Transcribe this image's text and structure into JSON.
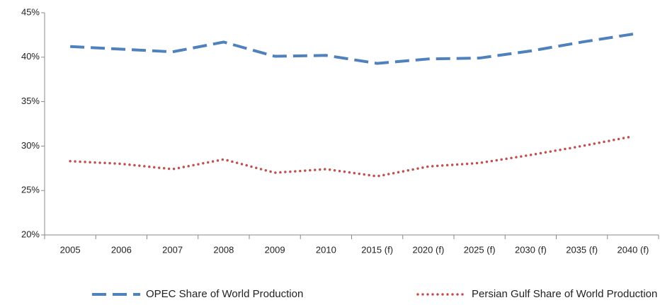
{
  "chart_data": {
    "type": "line",
    "categories": [
      "2005",
      "2006",
      "2007",
      "2008",
      "2009",
      "2010",
      "2015 (f)",
      "2020 (f)",
      "2025 (f)",
      "2030 (f)",
      "2035 (f)",
      "2040 (f)"
    ],
    "series": [
      {
        "name": "OPEC Share of World Production",
        "color": "#4f81bd",
        "style": "dashed",
        "values": [
          41.2,
          40.9,
          40.6,
          41.7,
          40.1,
          40.2,
          39.3,
          39.8,
          39.9,
          40.7,
          41.7,
          42.6
        ]
      },
      {
        "name": "Persian Gulf Share of World Production",
        "color": "#c0504d",
        "style": "dotted",
        "values": [
          28.3,
          28.0,
          27.4,
          28.5,
          27.0,
          27.4,
          26.6,
          27.7,
          28.1,
          29.0,
          30.0,
          31.1
        ]
      }
    ],
    "ylim": [
      20,
      45
    ],
    "yticks": [
      {
        "value": 20,
        "label": "20%"
      },
      {
        "value": 25,
        "label": "25%"
      },
      {
        "value": 30,
        "label": "30%"
      },
      {
        "value": 35,
        "label": "35%"
      },
      {
        "value": 40,
        "label": "40%"
      },
      {
        "value": 45,
        "label": "45%"
      }
    ],
    "grid": false,
    "legend": "bottom"
  }
}
